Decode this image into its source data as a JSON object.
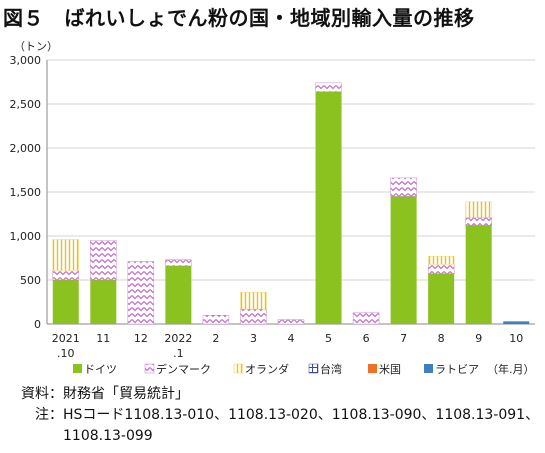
{
  "title": "図５　ばれいしょでん粉の国・地域別輸入量の推移",
  "notes": [
    {
      "key": "資料",
      "sep": "：",
      "text": "財務省「貿易統計」"
    },
    {
      "key": "注",
      "sep": "：",
      "text": "HSコード1108.13-010、1108.13-020、1108.13-090、1108.13-091、1108.13-099"
    }
  ],
  "chart_data": {
    "type": "bar",
    "stacked": true,
    "unit_label": "（トン）",
    "x_unit_label": "（年.月）",
    "categories": [
      [
        "2021",
        ".10"
      ],
      [
        "11"
      ],
      [
        "12"
      ],
      [
        "2022",
        ".1"
      ],
      [
        "2"
      ],
      [
        "3"
      ],
      [
        "4"
      ],
      [
        "5"
      ],
      [
        "6"
      ],
      [
        "7"
      ],
      [
        "8"
      ],
      [
        "9"
      ],
      [
        "10"
      ]
    ],
    "ylim": [
      0,
      3000
    ],
    "yticks": [
      0,
      500,
      1000,
      1500,
      2000,
      2500,
      3000
    ],
    "ytick_labels": [
      "0",
      "500",
      "1,000",
      "1,500",
      "2,000",
      "2,500",
      "3,000"
    ],
    "grid": true,
    "legend_position": "bottom",
    "series": [
      {
        "name": "ドイツ",
        "color": "#8cc21f",
        "pattern": "solid",
        "values": [
          500,
          500,
          0,
          660,
          0,
          0,
          0,
          2640,
          0,
          1450,
          570,
          1120,
          0
        ]
      },
      {
        "name": "デンマーク",
        "color": "#c377c9",
        "pattern": "zigzag",
        "values": [
          110,
          450,
          710,
          70,
          100,
          170,
          50,
          100,
          130,
          210,
          110,
          90,
          0
        ]
      },
      {
        "name": "オランダ",
        "color": "#f2d64b",
        "pattern": "vlines",
        "values": [
          350,
          0,
          0,
          0,
          0,
          190,
          0,
          0,
          0,
          0,
          90,
          180,
          0
        ]
      },
      {
        "name": "台湾",
        "color": "#3a4aa3",
        "pattern": "hash",
        "values": [
          0,
          0,
          0,
          0,
          0,
          0,
          0,
          0,
          0,
          0,
          0,
          0,
          0
        ]
      },
      {
        "name": "米国",
        "color": "#f07024",
        "pattern": "solid",
        "values": [
          0,
          0,
          0,
          0,
          0,
          0,
          0,
          0,
          0,
          0,
          0,
          0,
          0
        ]
      },
      {
        "name": "ラトビア",
        "color": "#3f7fc1",
        "pattern": "solid",
        "values": [
          0,
          0,
          0,
          0,
          0,
          0,
          0,
          0,
          0,
          0,
          0,
          0,
          30
        ]
      }
    ]
  }
}
